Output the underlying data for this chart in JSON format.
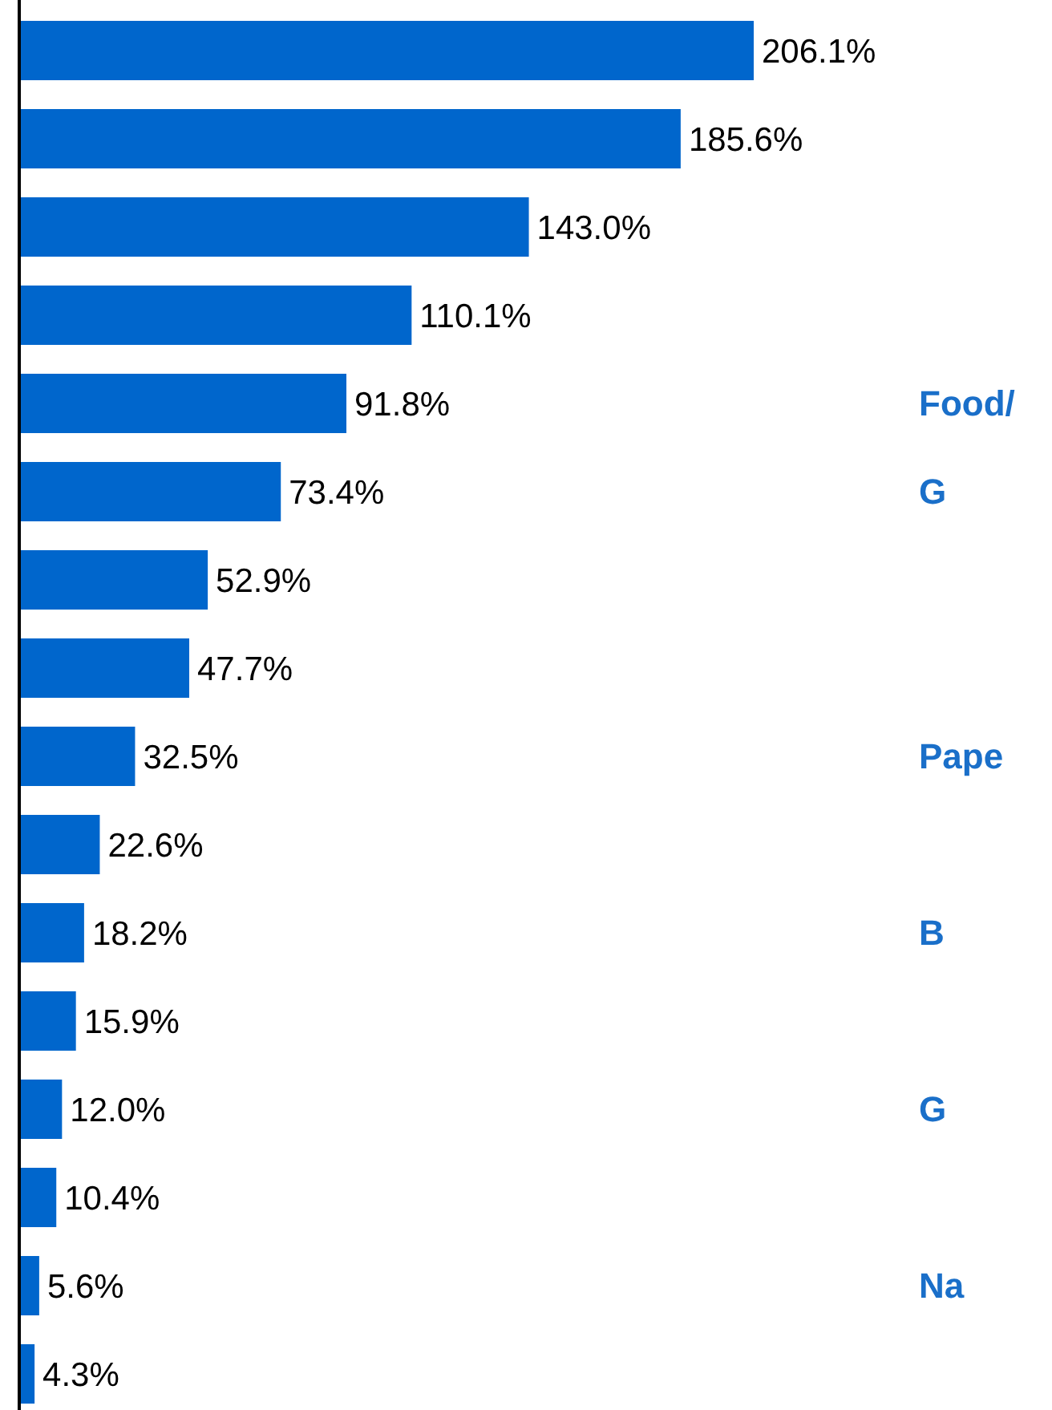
{
  "chart_data": {
    "type": "bar",
    "orientation": "horizontal",
    "categories": [
      null,
      null,
      null,
      null,
      "Food/",
      "G",
      null,
      null,
      "Pape",
      null,
      "B",
      null,
      "G",
      null,
      "Na",
      null
    ],
    "values": [
      206.1,
      185.6,
      143.0,
      110.1,
      91.8,
      73.4,
      52.9,
      47.7,
      32.5,
      22.6,
      18.2,
      15.9,
      12.0,
      10.4,
      5.6,
      4.3
    ],
    "value_labels": [
      "206.1%",
      "185.6%",
      "143.0%",
      "110.1%",
      "91.8%",
      "73.4%",
      "52.9%",
      "47.7%",
      "32.5%",
      "22.6%",
      "18.2%",
      "15.9%",
      "12.0%",
      "10.4%",
      "5.6%",
      "4.3%"
    ],
    "color": "#0066cc"
  }
}
